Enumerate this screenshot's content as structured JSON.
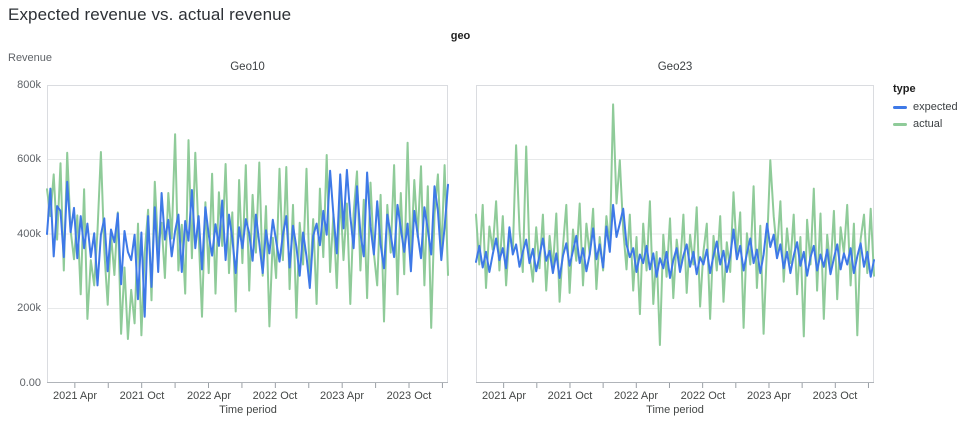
{
  "page": {
    "title": "Expected revenue vs. actual revenue"
  },
  "facet_dimension_label": "geo",
  "axes": {
    "y_title": "Revenue",
    "x_title": "Time period",
    "y_ticks": [
      "800k",
      "600k",
      "400k",
      "200k",
      "0.00"
    ],
    "x_ticks": [
      "2021 Apr",
      "2021 Oct",
      "2022 Apr",
      "2022 Oct",
      "2023 Apr",
      "2023 Oct"
    ]
  },
  "legend": {
    "title": "type",
    "items": [
      {
        "label": "expected",
        "color": "#3e79e7"
      },
      {
        "label": "actual",
        "color": "#8fcb99"
      }
    ]
  },
  "style": {
    "expected_color": "#3e79e7",
    "actual_color": "#8fcb99",
    "grid_color": "#e7e9ea",
    "border_color": "#dadce0",
    "axis_line_color": "#b0b4b9",
    "tick_mark_color": "#9aa0a6"
  },
  "chart_data": [
    {
      "type": "line",
      "facet": "Geo10",
      "title": "Geo10",
      "xlabel": "Time period",
      "ylabel": "Revenue",
      "x_start": "2021 Jan",
      "x_end": "2023 Dec",
      "x_tick_labels": [
        "2021 Apr",
        "2021 Oct",
        "2022 Apr",
        "2022 Oct",
        "2023 Apr",
        "2023 Oct"
      ],
      "ylim": [
        0,
        800000
      ],
      "values_unit": "thousands",
      "grid": true,
      "legend_position": "right",
      "series": [
        {
          "name": "expected",
          "color": "#3e79e7",
          "values": [
            400,
            522,
            340,
            475,
            462,
            338,
            540,
            405,
            470,
            335,
            448,
            362,
            428,
            338,
            402,
            262,
            398,
            442,
            300,
            412,
            378,
            455,
            265,
            408,
            352,
            330,
            398,
            225,
            404,
            178,
            448,
            258,
            472,
            298,
            510,
            385,
            438,
            340,
            408,
            452,
            298,
            435,
            382,
            518,
            362,
            448,
            305,
            472,
            398,
            342,
            426,
            368,
            490,
            330,
            452,
            388,
            295,
            418,
            362,
            440,
            402,
            328,
            452,
            375,
            295,
            410,
            348,
            438,
            382,
            326,
            398,
            448,
            310,
            422,
            365,
            288,
            404,
            340,
            255,
            395,
            428,
            370,
            462,
            398,
            570,
            452,
            348,
            560,
            415,
            572,
            448,
            362,
            528,
            402,
            340,
            565,
            420,
            345,
            488,
            372,
            308,
            452,
            398,
            338,
            478,
            415,
            352,
            428,
            300,
            462,
            398,
            335,
            472,
            412,
            345,
            528,
            462,
            330,
            418,
            532
          ]
        },
        {
          "name": "actual",
          "color": "#8fcb99",
          "values": [
            520,
            448,
            560,
            385,
            590,
            302,
            618,
            410,
            332,
            450,
            238,
            520,
            172,
            330,
            262,
            408,
            620,
            355,
            210,
            400,
            290,
            458,
            132,
            310,
            118,
            250,
            160,
            428,
            128,
            350,
            465,
            222,
            540,
            360,
            430,
            282,
            510,
            388,
            668,
            302,
            425,
            240,
            652,
            335,
            618,
            400,
            178,
            485,
            295,
            562,
            240,
            512,
            368,
            588,
            295,
            458,
            192,
            545,
            322,
            585,
            248,
            505,
            350,
            592,
            288,
            475,
            152,
            390,
            282,
            575,
            330,
            580,
            252,
            478,
            175,
            430,
            318,
            575,
            262,
            440,
            212,
            522,
            338,
            612,
            298,
            452,
            255,
            508,
            330,
            482,
            212,
            455,
            568,
            302,
            492,
            228,
            538,
            348,
            262,
            505,
            165,
            478,
            350,
            585,
            238,
            510,
            292,
            645,
            332,
            545,
            392,
            582,
            262,
            528,
            148,
            452,
            560,
            345,
            585,
            290
          ]
        }
      ]
    },
    {
      "type": "line",
      "facet": "Geo23",
      "title": "Geo23",
      "xlabel": "Time period",
      "ylabel": "Revenue",
      "x_start": "2021 Jan",
      "x_end": "2023 Dec",
      "x_tick_labels": [
        "2021 Apr",
        "2021 Oct",
        "2022 Apr",
        "2022 Oct",
        "2023 Apr",
        "2023 Oct"
      ],
      "ylim": [
        0,
        800000
      ],
      "values_unit": "thousands",
      "grid": true,
      "legend_position": "right",
      "series": [
        {
          "name": "expected",
          "color": "#3e79e7",
          "values": [
            325,
            368,
            310,
            352,
            298,
            345,
            388,
            330,
            362,
            308,
            418,
            345,
            372,
            312,
            352,
            385,
            322,
            360,
            300,
            342,
            388,
            328,
            355,
            295,
            348,
            282,
            342,
            375,
            315,
            355,
            395,
            322,
            362,
            300,
            345,
            415,
            332,
            372,
            310,
            420,
            352,
            478,
            392,
            428,
            468,
            372,
            338,
            362,
            298,
            345,
            322,
            368,
            305,
            348,
            285,
            335,
            308,
            352,
            282,
            330,
            362,
            298,
            342,
            372,
            312,
            352,
            292,
            338,
            318,
            358,
            295,
            342,
            380,
            318,
            355,
            298,
            340,
            412,
            332,
            368,
            302,
            348,
            388,
            322,
            358,
            295,
            345,
            428,
            365,
            398,
            335,
            372,
            308,
            352,
            295,
            342,
            378,
            315,
            352,
            288,
            338,
            368,
            302,
            345,
            312,
            358,
            292,
            335,
            372,
            305,
            348,
            318,
            362,
            295,
            340,
            375,
            312,
            352,
            285,
            330
          ]
        },
        {
          "name": "actual",
          "color": "#8fcb99",
          "values": [
            452,
            318,
            478,
            255,
            420,
            358,
            488,
            302,
            448,
            262,
            402,
            352,
            638,
            412,
            298,
            635,
            345,
            272,
            418,
            308,
            452,
            248,
            395,
            308,
            455,
            218,
            368,
            478,
            242,
            412,
            328,
            482,
            262,
            428,
            345,
            468,
            252,
            392,
            302,
            448,
            365,
            748,
            482,
            598,
            412,
            305,
            452,
            248,
            392,
            185,
            428,
            302,
            488,
            212,
            352,
            102,
            398,
            285,
            442,
            228,
            385,
            308,
            452,
            242,
            398,
            318,
            472,
            205,
            352,
            428,
            172,
            395,
            302,
            448,
            218,
            378,
            298,
            512,
            345,
            458,
            148,
            402,
            318,
            528,
            255,
            422,
            132,
            368,
            598,
            448,
            352,
            488,
            272,
            415,
            322,
            452,
            238,
            392,
            125,
            438,
            318,
            522,
            248,
            455,
            172,
            398,
            302,
            462,
            225,
            418,
            348,
            478,
            262,
            428,
            128,
            385,
            452,
            295,
            468,
            288
          ]
        }
      ]
    }
  ]
}
